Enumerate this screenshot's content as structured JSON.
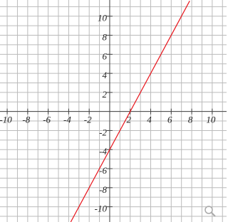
{
  "chart_data": {
    "type": "line",
    "x": [
      -3.8,
      7.8
    ],
    "series": [
      {
        "color": "#e8141b",
        "values": [
          -11.6,
          11.6
        ]
      }
    ],
    "xlim": [
      -10.7,
      11.4
    ],
    "ylim": [
      -11.6,
      11.7
    ],
    "xticks": [
      -10,
      -8,
      -6,
      -4,
      -2,
      2,
      4,
      6,
      8,
      10
    ],
    "yticks": [
      -10,
      -8,
      -6,
      -4,
      -2,
      2,
      4,
      6,
      8,
      10
    ],
    "xgrid": [
      -10,
      -9,
      -8,
      -7,
      -6,
      -5,
      -4,
      -3,
      -2,
      -1,
      0,
      1,
      2,
      3,
      4,
      5,
      6,
      7,
      8,
      9,
      10,
      11
    ],
    "ygrid": [
      -11,
      -10,
      -9,
      -8,
      -7,
      -6,
      -5,
      -4,
      -3,
      -2,
      -1,
      0,
      1,
      2,
      3,
      4,
      5,
      6,
      7,
      8,
      9,
      10,
      11
    ],
    "grid": true
  }
}
